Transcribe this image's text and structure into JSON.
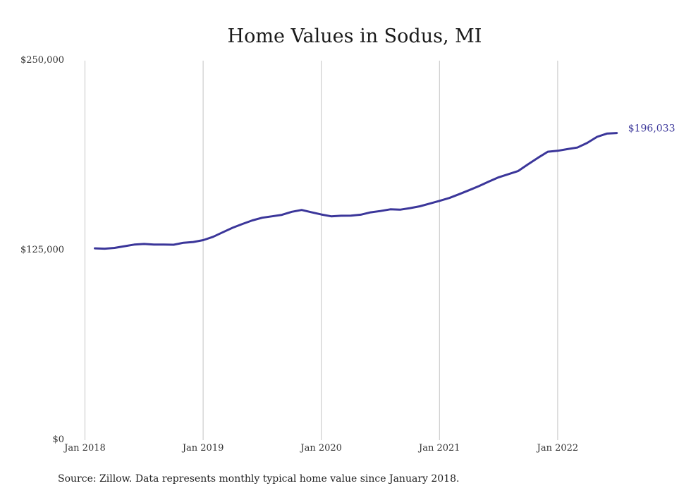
{
  "chart_data": {
    "type": "line",
    "title": "Home Values in Sodus, MI",
    "xlabel": "",
    "ylabel": "",
    "x_ticks": [
      "Jan 2018",
      "Jan 2019",
      "Jan 2020",
      "Jan 2021",
      "Jan 2022"
    ],
    "y_ticks": [
      "$0",
      "$125,000",
      "$250,000"
    ],
    "ylim": [
      0,
      250000
    ],
    "xlim": [
      "2018-01",
      "2022-12"
    ],
    "grid": "vertical",
    "line_color": "#3b369a",
    "end_label": "$196,033",
    "series": [
      {
        "x": [
          "2018-02",
          "2018-03",
          "2018-04",
          "2018-05",
          "2018-06",
          "2018-07",
          "2018-08",
          "2018-09",
          "2018-10",
          "2018-11",
          "2018-12",
          "2019-01",
          "2019-02",
          "2019-03",
          "2019-04",
          "2019-05",
          "2019-06",
          "2019-07",
          "2019-08",
          "2019-09",
          "2019-10",
          "2019-11",
          "2019-12",
          "2020-01",
          "2020-02",
          "2020-03",
          "2020-04",
          "2020-05",
          "2020-06",
          "2020-07",
          "2020-08",
          "2020-09",
          "2020-10",
          "2020-11",
          "2020-12",
          "2021-01",
          "2021-02",
          "2021-03",
          "2021-04",
          "2021-05",
          "2021-06",
          "2021-07",
          "2021-08",
          "2021-09",
          "2021-10",
          "2021-11",
          "2021-12",
          "2022-01",
          "2022-02",
          "2022-03",
          "2022-04",
          "2022-05",
          "2022-06",
          "2022-07"
        ],
        "values": [
          125400,
          125200,
          125700,
          126800,
          127900,
          128300,
          127900,
          127900,
          127800,
          129100,
          129600,
          130800,
          133000,
          136000,
          139000,
          141500,
          143800,
          145600,
          146500,
          147500,
          149500,
          150700,
          149200,
          147700,
          146500,
          146900,
          147000,
          147600,
          149100,
          150000,
          151100,
          150900,
          151900,
          153100,
          154900,
          156700,
          158600,
          161100,
          163700,
          166400,
          169400,
          172200,
          174300,
          176400,
          180800,
          185100,
          189100,
          189700,
          190800,
          191800,
          194900,
          198900,
          201000,
          201400
        ]
      }
    ],
    "source": "Source: Zillow. Data represents monthly typical home value since January 2018."
  }
}
